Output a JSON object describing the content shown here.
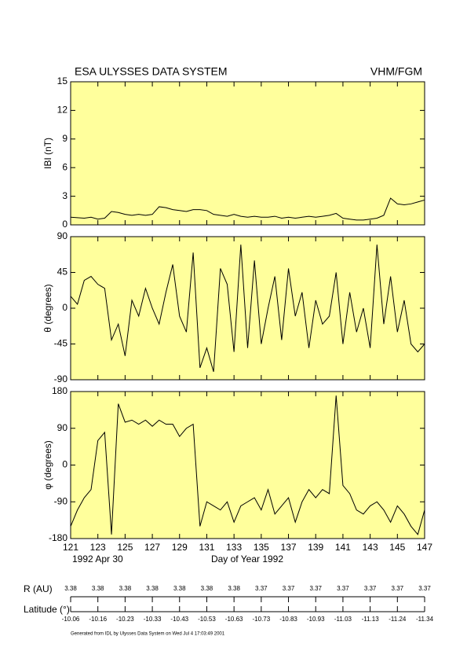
{
  "chart_data": [
    {
      "type": "line",
      "title": "ESA ULYSSES DATA SYSTEM",
      "title_right": "VHM/FGM",
      "ylabel": "IBI (nT)",
      "xlim": [
        121,
        147
      ],
      "xticks": [
        121,
        123,
        125,
        127,
        129,
        131,
        133,
        135,
        137,
        139,
        141,
        143,
        145,
        147
      ],
      "ylim": [
        0,
        15
      ],
      "yticks": [
        0,
        3,
        6,
        9,
        12,
        15
      ],
      "x": [
        121,
        121.5,
        122,
        122.5,
        123,
        123.5,
        124,
        124.5,
        125,
        125.5,
        126,
        126.5,
        127,
        127.5,
        128,
        128.5,
        129,
        129.5,
        130,
        130.5,
        131,
        131.5,
        132,
        132.5,
        133,
        133.5,
        134,
        134.5,
        135,
        135.5,
        136,
        136.5,
        137,
        137.5,
        138,
        138.5,
        139,
        139.5,
        140,
        140.5,
        141,
        141.5,
        142,
        142.5,
        143,
        143.5,
        144,
        144.5,
        145,
        145.5,
        146,
        146.5,
        147
      ],
      "series": [
        {
          "color": "#000000",
          "values": [
            0.8,
            0.75,
            0.7,
            0.8,
            0.6,
            0.7,
            1.4,
            1.3,
            1.1,
            1.0,
            1.1,
            1.0,
            1.1,
            1.9,
            1.8,
            1.6,
            1.5,
            1.4,
            1.6,
            1.6,
            1.5,
            1.1,
            1.0,
            0.9,
            1.1,
            0.9,
            0.8,
            0.9,
            0.8,
            0.8,
            0.9,
            0.7,
            0.8,
            0.7,
            0.8,
            0.9,
            0.8,
            0.9,
            1.0,
            1.2,
            0.7,
            0.6,
            0.5,
            0.5,
            0.6,
            0.7,
            1.0,
            2.8,
            2.2,
            2.1,
            2.2,
            2.4,
            2.6
          ]
        }
      ]
    },
    {
      "type": "line",
      "ylabel": "θ (degrees)",
      "xlim": [
        121,
        147
      ],
      "xticks": [
        121,
        123,
        125,
        127,
        129,
        131,
        133,
        135,
        137,
        139,
        141,
        143,
        145,
        147
      ],
      "ylim": [
        -90,
        90
      ],
      "yticks": [
        -90,
        -45,
        0,
        45,
        90
      ],
      "x": [
        121,
        121.5,
        122,
        122.5,
        123,
        123.5,
        124,
        124.5,
        125,
        125.5,
        126,
        126.5,
        127,
        127.5,
        128,
        128.5,
        129,
        129.5,
        130,
        130.5,
        131,
        131.5,
        132,
        132.5,
        133,
        133.5,
        134,
        134.5,
        135,
        135.5,
        136,
        136.5,
        137,
        137.5,
        138,
        138.5,
        139,
        139.5,
        140,
        140.5,
        141,
        141.5,
        142,
        142.5,
        143,
        143.5,
        144,
        144.5,
        145,
        145.5,
        146,
        146.5,
        147
      ],
      "series": [
        {
          "color": "#000000",
          "values": [
            15,
            5,
            35,
            40,
            30,
            25,
            -40,
            -20,
            -60,
            10,
            -10,
            25,
            0,
            -20,
            20,
            55,
            -10,
            -30,
            70,
            -75,
            -50,
            -80,
            50,
            30,
            -55,
            80,
            -50,
            60,
            -45,
            0,
            40,
            -40,
            50,
            -10,
            20,
            -50,
            10,
            -20,
            -10,
            45,
            -45,
            20,
            -30,
            0,
            -50,
            80,
            -20,
            40,
            -30,
            10,
            -45,
            -55,
            -45
          ]
        }
      ]
    },
    {
      "type": "line",
      "ylabel": "φ (degrees)",
      "xlabel": "Day of Year 1992",
      "date_label": "1992 Apr 30",
      "xlim": [
        121,
        147
      ],
      "xticks": [
        121,
        123,
        125,
        127,
        129,
        131,
        133,
        135,
        137,
        139,
        141,
        143,
        145,
        147
      ],
      "ylim": [
        -180,
        180
      ],
      "yticks": [
        -180,
        -90,
        0,
        90,
        180
      ],
      "x": [
        121,
        121.5,
        122,
        122.5,
        123,
        123.5,
        124,
        124.5,
        125,
        125.5,
        126,
        126.5,
        127,
        127.5,
        128,
        128.5,
        129,
        129.5,
        130,
        130.5,
        131,
        131.5,
        132,
        132.5,
        133,
        133.5,
        134,
        134.5,
        135,
        135.5,
        136,
        136.5,
        137,
        137.5,
        138,
        138.5,
        139,
        139.5,
        140,
        140.5,
        141,
        141.5,
        142,
        142.5,
        143,
        143.5,
        144,
        144.5,
        145,
        145.5,
        146,
        146.5,
        147
      ],
      "series": [
        {
          "color": "#000000",
          "values": [
            -150,
            -110,
            -80,
            -60,
            60,
            80,
            -170,
            150,
            105,
            110,
            100,
            110,
            95,
            110,
            100,
            100,
            70,
            90,
            100,
            -150,
            -90,
            -100,
            -110,
            -90,
            -140,
            -100,
            -90,
            -80,
            -110,
            -60,
            -120,
            -100,
            -80,
            -140,
            -90,
            -60,
            -80,
            -60,
            -70,
            170,
            -50,
            -70,
            -110,
            -120,
            -100,
            -90,
            -110,
            -140,
            -100,
            -120,
            -150,
            -170,
            -110
          ]
        }
      ]
    }
  ],
  "ephemeris": {
    "r_label": "R (AU)",
    "lat_label": "Latitude (°)",
    "xlim": [
      121,
      147
    ],
    "x": [
      121,
      123,
      125,
      127,
      129,
      131,
      133,
      135,
      137,
      139,
      141,
      143,
      145,
      147
    ],
    "r": [
      3.38,
      3.38,
      3.38,
      3.38,
      3.38,
      3.38,
      3.38,
      3.37,
      3.37,
      3.37,
      3.37,
      3.37,
      3.37,
      3.37
    ],
    "lat": [
      -10.06,
      -10.16,
      -10.23,
      -10.33,
      -10.43,
      -10.53,
      -10.63,
      -10.73,
      -10.83,
      -10.93,
      -11.03,
      -11.13,
      -11.24,
      -11.34
    ]
  },
  "footer": "Generated from IDL by Ulysses Data System on Wed Jul 4 17:03:49 2001"
}
